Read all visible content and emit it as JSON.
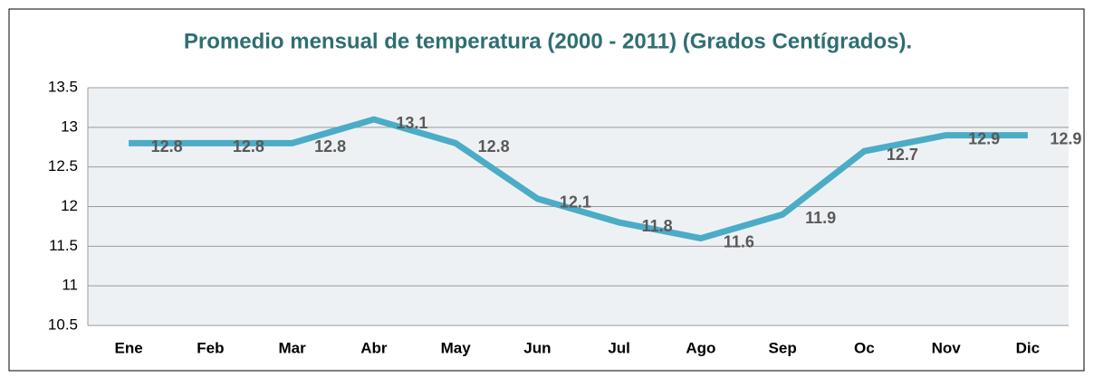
{
  "chart_data": {
    "type": "line",
    "title": "Promedio mensual de temperatura (2000 - 2011) (Grados Centígrados).",
    "categories": [
      "Ene",
      "Feb",
      "Mar",
      "Abr",
      "May",
      "Jun",
      "Jul",
      "Ago",
      "Sep",
      "Oc",
      "Nov",
      "Dic"
    ],
    "series": [
      {
        "name": "Temperatura",
        "color": "#4bacc6",
        "values": [
          12.8,
          12.8,
          12.8,
          13.1,
          12.8,
          12.1,
          11.8,
          11.6,
          11.9,
          12.7,
          12.9,
          12.9
        ]
      }
    ],
    "ylim": [
      10.5,
      13.5
    ],
    "yticks": [
      10.5,
      11,
      11.5,
      12,
      12.5,
      13,
      13.5
    ],
    "grid": true
  }
}
